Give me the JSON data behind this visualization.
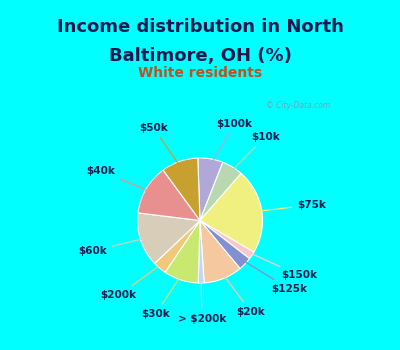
{
  "title_line1": "Income distribution in North",
  "title_line2": "Baltimore, OH (%)",
  "subtitle": "White residents",
  "background_color": "#00ffff",
  "chart_bg": "#d4eede",
  "slices": [
    {
      "label": "$100k",
      "value": 6.5,
      "color": "#b0a8d8"
    },
    {
      "label": "$10k",
      "value": 5.5,
      "color": "#b8d8b0"
    },
    {
      "label": "$75k",
      "value": 22.0,
      "color": "#f0f080"
    },
    {
      "label": "$150k",
      "value": 2.0,
      "color": "#f8c8c8"
    },
    {
      "label": "$125k",
      "value": 3.5,
      "color": "#8090d0"
    },
    {
      "label": "$20k",
      "value": 10.0,
      "color": "#f5c8a0"
    },
    {
      "label": "> $200k",
      "value": 1.5,
      "color": "#c0d8f0"
    },
    {
      "label": "$30k",
      "value": 9.0,
      "color": "#c8e870"
    },
    {
      "label": "$200k",
      "value": 3.5,
      "color": "#f0c878"
    },
    {
      "label": "$60k",
      "value": 14.0,
      "color": "#d8cdb8"
    },
    {
      "label": "$40k",
      "value": 13.0,
      "color": "#e89090"
    },
    {
      "label": "$50k",
      "value": 9.5,
      "color": "#c8a030"
    }
  ],
  "title_color": "#1a1a50",
  "subtitle_color": "#c05020",
  "label_color": "#1a1a50",
  "title_fontsize": 13,
  "subtitle_fontsize": 10,
  "label_fontsize": 7.5
}
